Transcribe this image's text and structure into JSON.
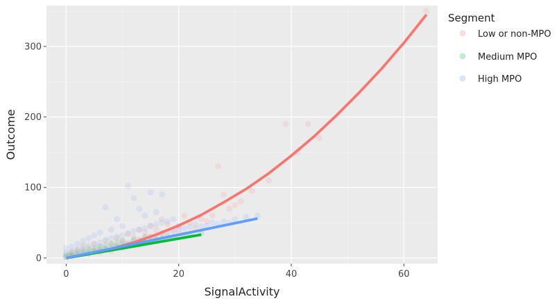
{
  "chart_data": {
    "type": "scatter",
    "xlabel": "SignalActivity",
    "ylabel": "Outcome",
    "xlim": [
      -3.5,
      66
    ],
    "ylim": [
      -8,
      358
    ],
    "x_ticks": [
      0,
      20,
      40,
      60
    ],
    "y_ticks": [
      0,
      100,
      200,
      300
    ],
    "grid": true,
    "legend": {
      "title": "Segment",
      "position": "right",
      "items": [
        "Low or non-MPO",
        "Medium MPO",
        "High MPO"
      ]
    },
    "series": [
      {
        "name": "Low or non-MPO",
        "color": "#F8766D",
        "points": [
          [
            0,
            2
          ],
          [
            0.5,
            4
          ],
          [
            1,
            3
          ],
          [
            1,
            8
          ],
          [
            2,
            5
          ],
          [
            2,
            12
          ],
          [
            3,
            9
          ],
          [
            3,
            18
          ],
          [
            4,
            6
          ],
          [
            4,
            14
          ],
          [
            5,
            11
          ],
          [
            5,
            20
          ],
          [
            6,
            8
          ],
          [
            6,
            16
          ],
          [
            7,
            13
          ],
          [
            7,
            24
          ],
          [
            8,
            10
          ],
          [
            8,
            20
          ],
          [
            9,
            17
          ],
          [
            9,
            28
          ],
          [
            10,
            14
          ],
          [
            10,
            24
          ],
          [
            11,
            20
          ],
          [
            11,
            34
          ],
          [
            12,
            18
          ],
          [
            12,
            30
          ],
          [
            13,
            25
          ],
          [
            13,
            40
          ],
          [
            14,
            22
          ],
          [
            14,
            36
          ],
          [
            15,
            30
          ],
          [
            15,
            46
          ],
          [
            16,
            27
          ],
          [
            16,
            40
          ],
          [
            17,
            35
          ],
          [
            17,
            55
          ],
          [
            18,
            32
          ],
          [
            18,
            48
          ],
          [
            19,
            40
          ],
          [
            20,
            45
          ],
          [
            20,
            36
          ],
          [
            21,
            60
          ],
          [
            22,
            50
          ],
          [
            23,
            42
          ],
          [
            24,
            55
          ],
          [
            25,
            52
          ],
          [
            26,
            60
          ],
          [
            27,
            130
          ],
          [
            28,
            90
          ],
          [
            29,
            70
          ],
          [
            30,
            75
          ],
          [
            31,
            80
          ],
          [
            33,
            95
          ],
          [
            36,
            110
          ],
          [
            39,
            190
          ],
          [
            41,
            150
          ],
          [
            43,
            190
          ],
          [
            45,
            170
          ],
          [
            64,
            350
          ]
        ],
        "fit": [
          [
            0,
            0
          ],
          [
            4,
            6
          ],
          [
            8,
            13
          ],
          [
            12,
            22
          ],
          [
            16,
            33
          ],
          [
            20,
            46
          ],
          [
            24,
            61
          ],
          [
            28,
            79
          ],
          [
            32,
            98
          ],
          [
            36,
            120
          ],
          [
            40,
            145
          ],
          [
            44,
            172
          ],
          [
            48,
            202
          ],
          [
            52,
            234
          ],
          [
            56,
            268
          ],
          [
            60,
            305
          ],
          [
            64,
            345
          ]
        ]
      },
      {
        "name": "Medium MPO",
        "color": "#00BA38",
        "points": [
          [
            0,
            1
          ],
          [
            0,
            5
          ],
          [
            1,
            3
          ],
          [
            1,
            7
          ],
          [
            2,
            4
          ],
          [
            2,
            9
          ],
          [
            3,
            6
          ],
          [
            3,
            11
          ],
          [
            4,
            7
          ],
          [
            4,
            12
          ],
          [
            5,
            9
          ],
          [
            5,
            14
          ],
          [
            6,
            10
          ],
          [
            6,
            16
          ],
          [
            7,
            12
          ],
          [
            7,
            18
          ],
          [
            8,
            13
          ],
          [
            8,
            20
          ],
          [
            9,
            15
          ],
          [
            9,
            22
          ],
          [
            10,
            16
          ],
          [
            10,
            24
          ],
          [
            11,
            18
          ],
          [
            12,
            19
          ],
          [
            12,
            26
          ],
          [
            13,
            21
          ],
          [
            14,
            22
          ],
          [
            14,
            30
          ],
          [
            15,
            24
          ],
          [
            16,
            26
          ],
          [
            17,
            28
          ],
          [
            18,
            28
          ],
          [
            19,
            30
          ],
          [
            20,
            31
          ],
          [
            21,
            33
          ],
          [
            22,
            34
          ],
          [
            24,
            35
          ]
        ],
        "fit": [
          [
            0,
            0
          ],
          [
            4,
            5.5
          ],
          [
            8,
            11
          ],
          [
            12,
            16.5
          ],
          [
            16,
            22
          ],
          [
            20,
            27.5
          ],
          [
            24,
            33
          ]
        ]
      },
      {
        "name": "High MPO",
        "color": "#619CFF",
        "points": [
          [
            0,
            2
          ],
          [
            0,
            8
          ],
          [
            0,
            14
          ],
          [
            1,
            4
          ],
          [
            1,
            10
          ],
          [
            1,
            16
          ],
          [
            2,
            6
          ],
          [
            2,
            12
          ],
          [
            2,
            20
          ],
          [
            3,
            8
          ],
          [
            3,
            15
          ],
          [
            3,
            24
          ],
          [
            4,
            9
          ],
          [
            4,
            18
          ],
          [
            4,
            28
          ],
          [
            5,
            11
          ],
          [
            5,
            20
          ],
          [
            5,
            32
          ],
          [
            6,
            12
          ],
          [
            6,
            22
          ],
          [
            6,
            36
          ],
          [
            7,
            14
          ],
          [
            7,
            26
          ],
          [
            7,
            72
          ],
          [
            8,
            16
          ],
          [
            8,
            28
          ],
          [
            8,
            40
          ],
          [
            9,
            18
          ],
          [
            9,
            30
          ],
          [
            9,
            55
          ],
          [
            10,
            20
          ],
          [
            10,
            32
          ],
          [
            10,
            45
          ],
          [
            11,
            22
          ],
          [
            11,
            35
          ],
          [
            11,
            102
          ],
          [
            12,
            24
          ],
          [
            12,
            38
          ],
          [
            12,
            85
          ],
          [
            13,
            26
          ],
          [
            13,
            40
          ],
          [
            13,
            70
          ],
          [
            14,
            28
          ],
          [
            14,
            42
          ],
          [
            14,
            60
          ],
          [
            15,
            30
          ],
          [
            15,
            45
          ],
          [
            15,
            93
          ],
          [
            16,
            32
          ],
          [
            16,
            48
          ],
          [
            16,
            65
          ],
          [
            17,
            34
          ],
          [
            17,
            50
          ],
          [
            17,
            90
          ],
          [
            18,
            36
          ],
          [
            18,
            52
          ],
          [
            19,
            38
          ],
          [
            19,
            55
          ],
          [
            20,
            40
          ],
          [
            20,
            45
          ],
          [
            21,
            42
          ],
          [
            22,
            44
          ],
          [
            23,
            48
          ],
          [
            24,
            45
          ],
          [
            25,
            46
          ],
          [
            26,
            50
          ],
          [
            27,
            48
          ],
          [
            28,
            52
          ],
          [
            29,
            50
          ],
          [
            30,
            55
          ],
          [
            32,
            58
          ],
          [
            34,
            60
          ]
        ],
        "fit": [
          [
            0,
            0
          ],
          [
            34,
            56
          ]
        ]
      }
    ]
  }
}
